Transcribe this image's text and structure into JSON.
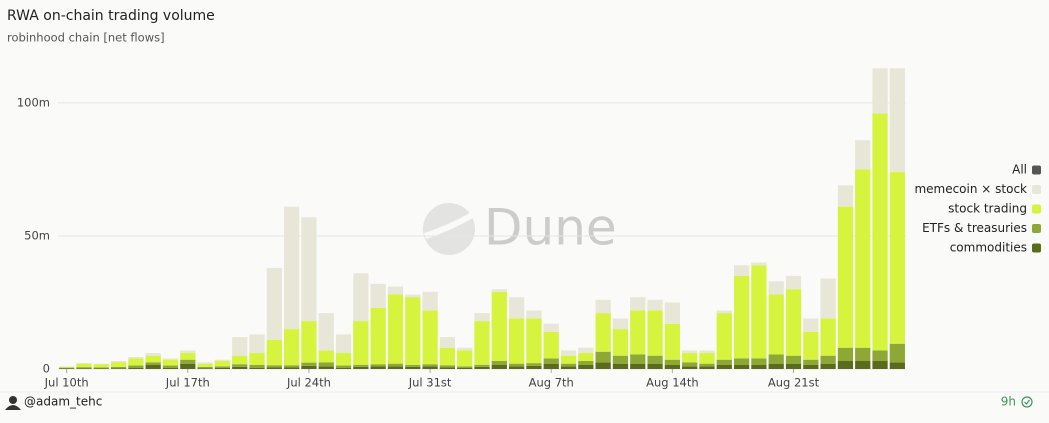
{
  "chart_data": {
    "type": "stacked_bar",
    "title": "RWA on-chain trading volume",
    "subtitle": "robinhood chain [net flows]",
    "watermark": "Dune",
    "categories": [
      "Jul 10th",
      null,
      null,
      null,
      null,
      null,
      null,
      "Jul 17th",
      null,
      null,
      null,
      null,
      null,
      null,
      "Jul 24th",
      null,
      null,
      null,
      null,
      null,
      null,
      "Jul 31st",
      null,
      null,
      null,
      null,
      null,
      null,
      "Aug 7th",
      null,
      null,
      null,
      null,
      null,
      null,
      "Aug 14th",
      null,
      null,
      null,
      null,
      null,
      null,
      "Aug 21st",
      null,
      null,
      null,
      null,
      null,
      null
    ],
    "series": [
      {
        "name": "commodities",
        "color": "#5b6b1c",
        "values": [
          0.2,
          0.2,
          0.2,
          0.3,
          0.5,
          1.5,
          0.5,
          2,
          0.3,
          0.5,
          0.8,
          0.5,
          0.6,
          0.6,
          1.2,
          1,
          0.5,
          0.8,
          1,
          1,
          0.8,
          1,
          0.6,
          0.5,
          0.8,
          1.5,
          1,
          1.2,
          2,
          1,
          1.5,
          2.5,
          2,
          2,
          2,
          1.5,
          1,
          1,
          1.5,
          1.5,
          1.5,
          2,
          2,
          1.5,
          2,
          3,
          3,
          3,
          2.5
        ]
      },
      {
        "name": "ETFs & treasuries",
        "color": "#8da834",
        "values": [
          0.3,
          0.5,
          0.4,
          0.5,
          0.8,
          1,
          0.8,
          1.5,
          0.5,
          0.5,
          1,
          1,
          0.8,
          0.8,
          1.2,
          1.5,
          0.8,
          0.8,
          0.8,
          1,
          0.7,
          0.8,
          0.8,
          0.5,
          0.8,
          1.5,
          1,
          1,
          2,
          1,
          1.5,
          4,
          3,
          3.5,
          3,
          2,
          1.5,
          1,
          2,
          2.5,
          2.5,
          3.5,
          3,
          2,
          3,
          5,
          5,
          4,
          7
        ]
      },
      {
        "name": "stock trading",
        "color": "#d6f43e",
        "values": [
          0.3,
          1.3,
          1.2,
          1.8,
          2.7,
          2.5,
          2.2,
          2.5,
          1.2,
          2,
          3.2,
          4.5,
          9.6,
          13.6,
          15.6,
          4.5,
          4.7,
          16.4,
          21.2,
          26,
          25.5,
          20.2,
          6.6,
          6,
          16.4,
          26,
          17,
          16.8,
          10,
          3,
          3,
          14.5,
          10,
          16.5,
          17,
          13.5,
          3.5,
          4,
          17.5,
          31,
          35,
          22.5,
          25,
          10.5,
          14,
          53,
          67,
          89,
          64.5
        ]
      },
      {
        "name": "memecoin × stock",
        "color": "#e8e6d7",
        "values": [
          0.2,
          0.3,
          0.2,
          0.4,
          0.5,
          1,
          0.5,
          1,
          0.5,
          0.5,
          7,
          7,
          27,
          46,
          39,
          14,
          7,
          18,
          9,
          3,
          1,
          7,
          4,
          1,
          3,
          1,
          8,
          3,
          3,
          2,
          2,
          5,
          4,
          5,
          4,
          8,
          1,
          1,
          1,
          4,
          1,
          5,
          5,
          5,
          15,
          8,
          11,
          17,
          39
        ]
      }
    ],
    "legend_all": {
      "name": "All",
      "color": "#555555"
    },
    "ylim": [
      0,
      115
    ],
    "yticks": [
      0,
      {
        "value": 50,
        "label": "50m"
      },
      {
        "value": 100,
        "label": "100m"
      }
    ],
    "grid": true
  },
  "footer": {
    "author": "@adam_tehc",
    "age": "9h"
  }
}
